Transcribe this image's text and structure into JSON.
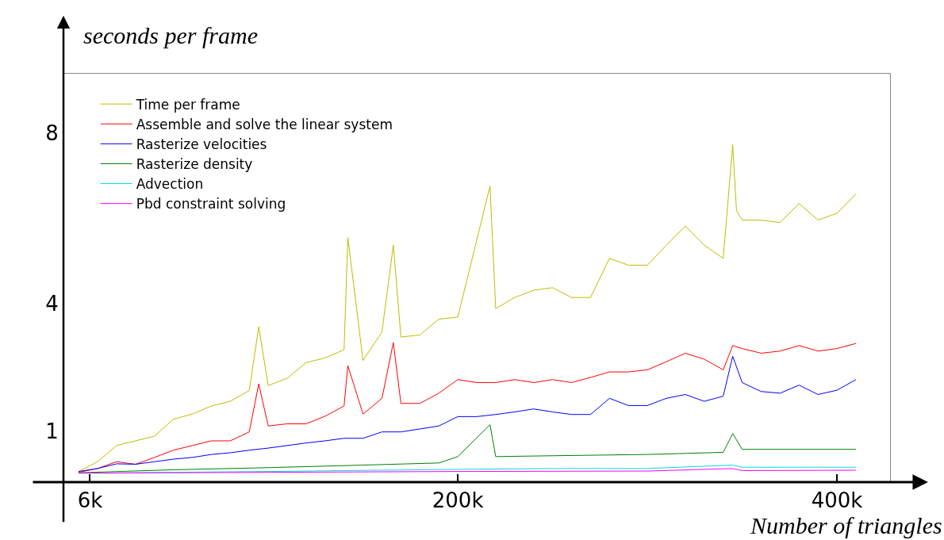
{
  "chart_data": {
    "type": "line",
    "xlabel": "Number of triangles",
    "ylabel": "seconds per frame",
    "xlim": [
      -8000,
      428000
    ],
    "xticks": [
      {
        "value": 6000,
        "label": "6k"
      },
      {
        "value": 200000,
        "label": "200k"
      },
      {
        "value": 400000,
        "label": "400k"
      }
    ],
    "ylim": [
      -0.2,
      9.4
    ],
    "yticks": [
      1,
      4,
      8
    ],
    "legend": "top left",
    "marker": "none",
    "line_style": "solid",
    "series": [
      {
        "name": "Time per frame",
        "color": "#bfbb00",
        "x": [
          0,
          10000,
          20000,
          30000,
          40000,
          50000,
          60000,
          70000,
          80000,
          90000,
          95000,
          100000,
          110000,
          120000,
          130000,
          140000,
          142000,
          150000,
          160000,
          166000,
          170000,
          180000,
          190000,
          200000,
          217000,
          220000,
          230000,
          240000,
          250000,
          260000,
          270000,
          280000,
          290000,
          300000,
          310000,
          320000,
          330000,
          340000,
          345000,
          347000,
          350000,
          360000,
          370000,
          380000,
          390000,
          400000,
          410000
        ],
        "values": [
          0.05,
          0.28,
          0.66,
          0.77,
          0.88,
          1.28,
          1.4,
          1.59,
          1.7,
          1.95,
          3.45,
          2.07,
          2.24,
          2.61,
          2.72,
          2.91,
          5.55,
          2.66,
          3.33,
          5.37,
          3.21,
          3.26,
          3.63,
          3.68,
          6.76,
          3.88,
          4.14,
          4.31,
          4.37,
          4.14,
          4.14,
          5.06,
          4.9,
          4.9,
          5.37,
          5.82,
          5.37,
          5.06,
          7.73,
          6.18,
          5.96,
          5.96,
          5.9,
          6.35,
          5.96,
          6.12,
          6.57
        ]
      },
      {
        "name": "Assemble and solve the linear system",
        "color": "#ff0000",
        "x": [
          0,
          10000,
          20000,
          30000,
          40000,
          50000,
          60000,
          70000,
          80000,
          90000,
          95000,
          100000,
          110000,
          120000,
          130000,
          140000,
          142000,
          150000,
          160000,
          166000,
          170000,
          180000,
          190000,
          200000,
          210000,
          220000,
          230000,
          240000,
          250000,
          260000,
          270000,
          280000,
          290000,
          300000,
          310000,
          320000,
          330000,
          340000,
          345000,
          350000,
          360000,
          370000,
          380000,
          390000,
          400000,
          410000
        ],
        "values": [
          0.03,
          0.12,
          0.28,
          0.22,
          0.38,
          0.55,
          0.66,
          0.77,
          0.77,
          0.98,
          2.11,
          1.12,
          1.17,
          1.17,
          1.35,
          1.59,
          2.54,
          1.4,
          1.77,
          3.08,
          1.65,
          1.65,
          1.89,
          2.21,
          2.14,
          2.14,
          2.21,
          2.14,
          2.21,
          2.14,
          2.26,
          2.39,
          2.39,
          2.44,
          2.63,
          2.83,
          2.69,
          2.44,
          3.01,
          2.94,
          2.83,
          2.88,
          3.01,
          2.88,
          2.94,
          3.06
        ]
      },
      {
        "name": "Rasterize velocities",
        "color": "#0000ff",
        "x": [
          0,
          10000,
          20000,
          30000,
          40000,
          50000,
          60000,
          70000,
          80000,
          90000,
          100000,
          110000,
          120000,
          130000,
          140000,
          150000,
          160000,
          170000,
          180000,
          190000,
          200000,
          210000,
          220000,
          230000,
          240000,
          250000,
          260000,
          270000,
          280000,
          290000,
          300000,
          310000,
          320000,
          330000,
          340000,
          345000,
          350000,
          360000,
          370000,
          380000,
          390000,
          400000,
          410000
        ],
        "values": [
          0.05,
          0.12,
          0.23,
          0.22,
          0.28,
          0.34,
          0.38,
          0.45,
          0.49,
          0.55,
          0.6,
          0.66,
          0.72,
          0.77,
          0.83,
          0.83,
          0.98,
          0.98,
          1.05,
          1.12,
          1.34,
          1.34,
          1.39,
          1.45,
          1.52,
          1.45,
          1.39,
          1.39,
          1.77,
          1.6,
          1.6,
          1.77,
          1.86,
          1.7,
          1.82,
          2.76,
          2.14,
          1.93,
          1.89,
          2.08,
          1.86,
          1.96,
          2.21
        ]
      },
      {
        "name": "Rasterize density",
        "color": "#008000",
        "x": [
          0,
          50000,
          100000,
          150000,
          190000,
          200000,
          217000,
          220000,
          250000,
          300000,
          340000,
          345000,
          350000,
          410000
        ],
        "values": [
          0.02,
          0.09,
          0.14,
          0.2,
          0.25,
          0.4,
          1.15,
          0.4,
          0.42,
          0.45,
          0.5,
          0.94,
          0.57,
          0.57
        ]
      },
      {
        "name": "Advection",
        "color": "#00dddd",
        "x": [
          0,
          100000,
          200000,
          250000,
          300000,
          345000,
          350000,
          410000
        ],
        "values": [
          0.01,
          0.05,
          0.1,
          0.12,
          0.12,
          0.2,
          0.15,
          0.15
        ]
      },
      {
        "name": "Pbd constraint solving",
        "color": "#ff00ff",
        "x": [
          0,
          100000,
          200000,
          300000,
          345000,
          350000,
          410000
        ],
        "values": [
          0.01,
          0.03,
          0.05,
          0.06,
          0.12,
          0.07,
          0.08
        ]
      }
    ]
  }
}
